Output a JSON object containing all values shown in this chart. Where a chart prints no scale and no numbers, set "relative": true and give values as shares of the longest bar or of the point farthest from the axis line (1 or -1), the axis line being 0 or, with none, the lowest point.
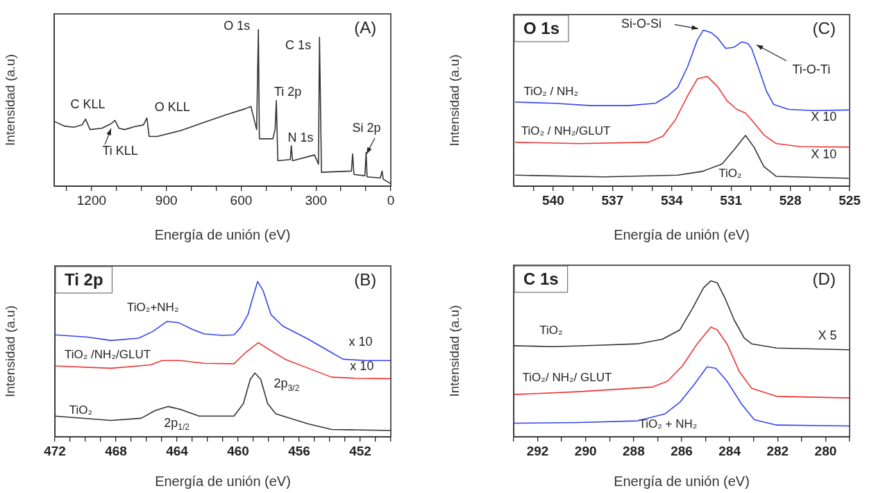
{
  "chart_data": [
    {
      "type": "line",
      "xlabel": "Energía de unión (eV)",
      "ylabel": "Intensidad (a.u)",
      "relative": true,
      "xlim": [
        1350,
        0
      ],
      "xticks": [
        {
          "value": 1300,
          "label": null
        },
        1200,
        {
          "value": 1100,
          "label": null
        },
        {
          "value": 1000,
          "label": null
        },
        900,
        {
          "value": 800,
          "label": null
        },
        {
          "value": 700,
          "label": null
        },
        600,
        {
          "value": 500,
          "label": null
        },
        {
          "value": 400,
          "label": null
        },
        300,
        {
          "value": 200,
          "label": null
        },
        {
          "value": 100,
          "label": null
        },
        0
      ],
      "series": [
        {
          "color": "#333333",
          "x": [
            1349,
            1308,
            1271,
            1238,
            1224,
            1206,
            1159,
            1122,
            1106,
            1090,
            1067,
            1029,
            992,
            978,
            969,
            937,
            844,
            751,
            658,
            584,
            561,
            538,
            531,
            527,
            473,
            464,
            459,
            453,
            403,
            399,
            394,
            306,
            290,
            286,
            278,
            158,
            153,
            148,
            104,
            99,
            95,
            42,
            35,
            30,
            0
          ],
          "values": [
            0.413,
            0.383,
            0.376,
            0.391,
            0.428,
            0.361,
            0.369,
            0.398,
            0.42,
            0.369,
            0.361,
            0.379,
            0.391,
            0.435,
            0.317,
            0.317,
            0.354,
            0.406,
            0.457,
            0.494,
            0.509,
            0.361,
            1.0,
            0.302,
            0.302,
            0.361,
            0.546,
            0.162,
            0.17,
            0.258,
            0.162,
            0.199,
            0.14,
            0.951,
            0.088,
            0.096,
            0.206,
            0.074,
            0.066,
            0.214,
            0.059,
            0.052,
            0.096,
            0.044,
            0.015
          ]
        }
      ],
      "annotations": [
        "(A)",
        "O 1s",
        "C 1s",
        "Ti 2p",
        "N 1s",
        "Si 2p",
        "C KLL",
        "O KLL",
        "Ti KLL"
      ]
    },
    {
      "type": "line",
      "title": "O 1s",
      "xlabel": "Energía de unión (eV)",
      "ylabel": "Intensidad (a.u)",
      "relative": true,
      "xlim": [
        542,
        525
      ],
      "xticks": [
        {
          "value": 541,
          "label": null
        },
        540,
        {
          "value": 539,
          "label": null
        },
        {
          "value": 538,
          "label": null
        },
        537,
        {
          "value": 536,
          "label": null
        },
        {
          "value": 535,
          "label": null
        },
        534,
        {
          "value": 533,
          "label": null
        },
        {
          "value": 532,
          "label": null
        },
        531,
        {
          "value": 530,
          "label": null
        },
        {
          "value": 529,
          "label": null
        },
        528,
        {
          "value": 527,
          "label": null
        },
        {
          "value": 526,
          "label": null
        },
        525
      ],
      "series": [
        {
          "name": "TiO₂ / NH₂",
          "color": "#3344ee",
          "x": [
            541.93,
            539.94,
            538.07,
            536.2,
            534.83,
            534.2,
            533.7,
            533.2,
            532.7,
            532.4,
            532.0,
            531.7,
            531.27,
            530.84,
            530.46,
            530.15,
            529.96,
            529.59,
            529.21,
            528.84,
            528.09,
            526.85,
            525.04
          ],
          "values": [
            0.539,
            0.531,
            0.516,
            0.516,
            0.531,
            0.578,
            0.633,
            0.766,
            0.938,
            1.0,
            0.984,
            0.953,
            0.883,
            0.891,
            0.925,
            0.914,
            0.883,
            0.75,
            0.609,
            0.523,
            0.492,
            0.484,
            0.488
          ]
        },
        {
          "name": "TiO₂ / NH₂/GLUT",
          "color": "#ee3333",
          "x": [
            541.93,
            538.69,
            535.2,
            534.45,
            533.83,
            533.2,
            532.7,
            532.2,
            531.7,
            531.2,
            530.71,
            530.27,
            529.84,
            529.34,
            528.72,
            527.47,
            525.04
          ],
          "values": [
            0.281,
            0.273,
            0.281,
            0.32,
            0.422,
            0.578,
            0.688,
            0.703,
            0.641,
            0.547,
            0.492,
            0.469,
            0.406,
            0.328,
            0.273,
            0.253,
            0.25
          ]
        },
        {
          "name": "TiO₂",
          "color": "#333333",
          "x": [
            541.93,
            537.44,
            533.7,
            532.46,
            531.46,
            530.84,
            530.27,
            529.84,
            529.34,
            528.72,
            525.04
          ],
          "values": [
            0.07,
            0.059,
            0.07,
            0.094,
            0.141,
            0.234,
            0.325,
            0.25,
            0.125,
            0.0625,
            0.05
          ]
        }
      ],
      "annotations": [
        "(C)",
        "Si-O-Si",
        "Ti-O-Ti",
        "X 10",
        "X 10"
      ]
    },
    {
      "type": "line",
      "title": "Ti 2p",
      "xlabel": "Energía de unión (eV)",
      "ylabel": "Intensidad (a.u)",
      "relative": true,
      "xlim": [
        472,
        450
      ],
      "xticks": [
        472,
        {
          "value": 471,
          "label": null
        },
        {
          "value": 470,
          "label": null
        },
        {
          "value": 469,
          "label": null
        },
        468,
        {
          "value": 467,
          "label": null
        },
        {
          "value": 466,
          "label": null
        },
        {
          "value": 465,
          "label": null
        },
        464,
        {
          "value": 463,
          "label": null
        },
        {
          "value": 462,
          "label": null
        },
        {
          "value": 461,
          "label": null
        },
        460,
        {
          "value": 459,
          "label": null
        },
        {
          "value": 458,
          "label": null
        },
        {
          "value": 457,
          "label": null
        },
        456,
        {
          "value": 455,
          "label": null
        },
        {
          "value": 454,
          "label": null
        },
        {
          "value": 453,
          "label": null
        },
        452,
        {
          "value": 451,
          "label": null
        },
        {
          "value": 450,
          "label": null
        }
      ],
      "series": [
        {
          "name": "TiO₂+NH₂",
          "color": "#3344ee",
          "x": [
            472,
            469.84,
            468.32,
            466.5,
            465.59,
            464.67,
            463.91,
            463.0,
            462.24,
            461.03,
            460.27,
            459.81,
            459.36,
            458.98,
            458.72,
            458.37,
            457.84,
            457.08,
            455.4,
            453.88,
            453.12,
            451.6,
            450
          ],
          "values": [
            0.656,
            0.642,
            0.62,
            0.635,
            0.678,
            0.742,
            0.735,
            0.692,
            0.663,
            0.653,
            0.656,
            0.706,
            0.785,
            0.914,
            1.0,
            0.943,
            0.785,
            0.713,
            0.628,
            0.542,
            0.499,
            0.491,
            0.491
          ]
        },
        {
          "name": "TiO₂ /NH₂/GLUT",
          "color": "#ee3333",
          "x": [
            472,
            468.32,
            465.74,
            464.98,
            463.76,
            462.24,
            460.27,
            459.51,
            458.67,
            457.99,
            456.92,
            455.4,
            453.88,
            452.36,
            450
          ],
          "values": [
            0.456,
            0.441,
            0.463,
            0.491,
            0.491,
            0.473,
            0.47,
            0.542,
            0.606,
            0.563,
            0.499,
            0.441,
            0.384,
            0.377,
            0.374
          ]
        },
        {
          "name": "TiO₂",
          "color": "#333333",
          "x": [
            472,
            468.32,
            466.35,
            465.43,
            464.6,
            463.76,
            462.55,
            460.27,
            459.66,
            459.2,
            458.9,
            458.52,
            458.06,
            457.53,
            455.4,
            453.88,
            450
          ],
          "values": [
            0.133,
            0.105,
            0.119,
            0.169,
            0.195,
            0.176,
            0.133,
            0.133,
            0.212,
            0.37,
            0.41,
            0.37,
            0.212,
            0.148,
            0.083,
            0.047,
            0.04
          ]
        }
      ],
      "annotations": [
        "(B)",
        "x 10",
        "x 10",
        "2p$_{3/2}$",
        "2p$_{1/2}$"
      ]
    },
    {
      "type": "line",
      "title": "C 1s",
      "xlabel": "Energía de unión (eV)",
      "ylabel": "Intensidad (a.u)",
      "relative": true,
      "xlim": [
        293,
        279
      ],
      "xticks": [
        {
          "value": 293,
          "label": null
        },
        292,
        {
          "value": 291,
          "label": null
        },
        290,
        {
          "value": 289,
          "label": null
        },
        288,
        {
          "value": 287,
          "label": null
        },
        286,
        {
          "value": 285,
          "label": null
        },
        284,
        {
          "value": 283,
          "label": null
        },
        282,
        {
          "value": 281,
          "label": null
        },
        280,
        {
          "value": 279,
          "label": null
        }
      ],
      "series": [
        {
          "name": "TiO₂",
          "color": "#333333",
          "x": [
            293,
            291.35,
            289.28,
            287.83,
            286.8,
            286.07,
            285.56,
            285.09,
            284.78,
            284.52,
            284.21,
            283.8,
            283.39,
            283.08,
            282.04,
            279
          ],
          "values": [
            0.584,
            0.578,
            0.588,
            0.596,
            0.626,
            0.686,
            0.82,
            0.955,
            1.0,
            0.988,
            0.895,
            0.746,
            0.633,
            0.596,
            0.569,
            0.558
          ]
        },
        {
          "name": "TiO₂/ NH₂/ GLUT",
          "color": "#ee3333",
          "x": [
            293,
            290.31,
            287.21,
            286.59,
            285.97,
            285.35,
            284.78,
            284.52,
            284.11,
            283.59,
            283.08,
            282.04,
            279
          ],
          "values": [
            0.271,
            0.289,
            0.319,
            0.356,
            0.454,
            0.596,
            0.704,
            0.686,
            0.596,
            0.416,
            0.311,
            0.259,
            0.249
          ]
        },
        {
          "name": "TiO₂ + NH₂",
          "color": "#3344ee",
          "x": [
            293,
            290.31,
            287.83,
            286.69,
            286.07,
            285.45,
            284.94,
            284.57,
            284.11,
            283.49,
            282.97,
            282.04,
            279
          ],
          "values": [
            0.087,
            0.091,
            0.102,
            0.147,
            0.222,
            0.341,
            0.449,
            0.439,
            0.356,
            0.207,
            0.109,
            0.075,
            0.069
          ]
        }
      ],
      "annotations": [
        "(D)",
        "X 5"
      ]
    }
  ]
}
